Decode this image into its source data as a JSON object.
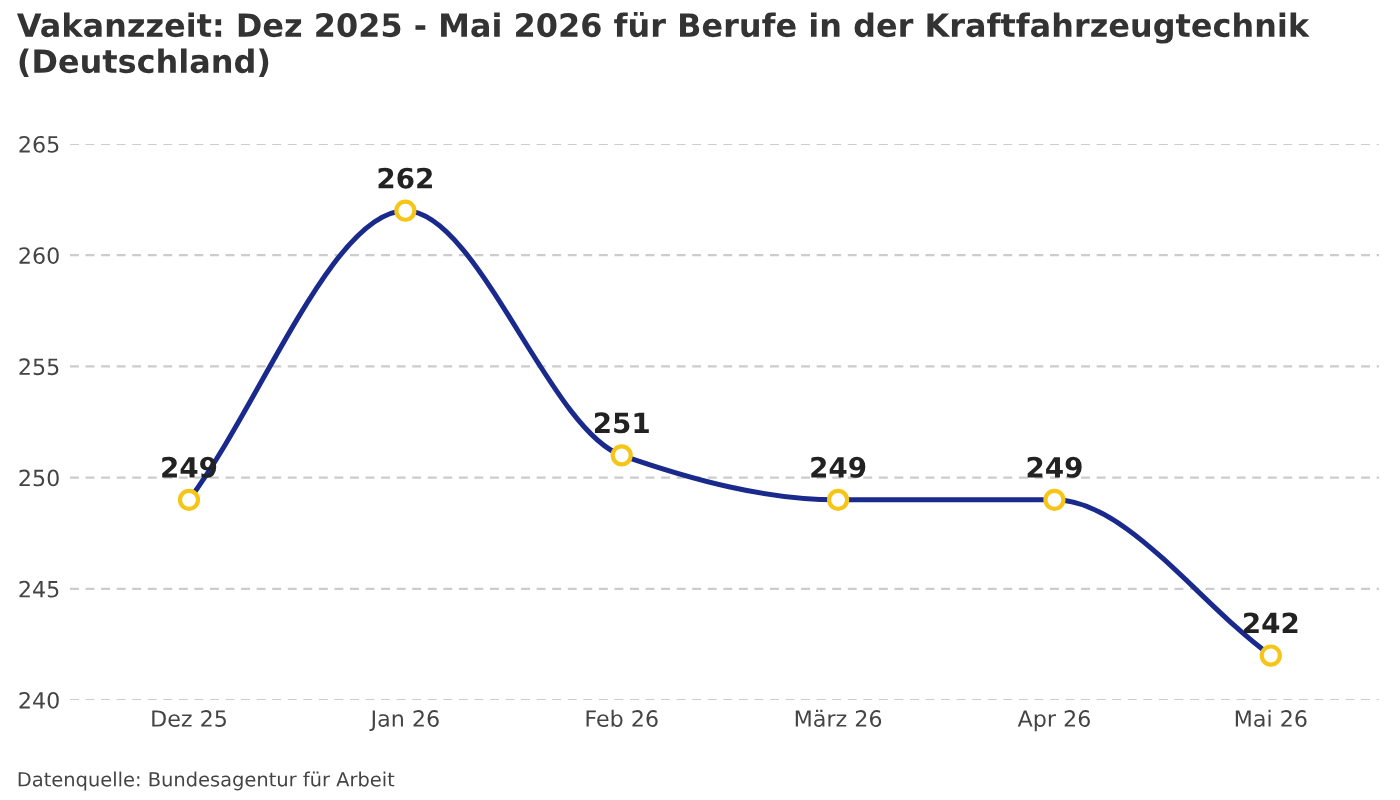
{
  "chart_data": {
    "type": "line",
    "title": "Vakanzzeit: Dez 2025 - Mai 2026 für Berufe in der Kraftfahrzeugtechnik (Deutschland)",
    "categories": [
      "Dez 25",
      "Jan 26",
      "Feb 26",
      "März 26",
      "Apr 26",
      "Mai 26"
    ],
    "series": [
      {
        "color": "#1a2a8c",
        "values": [
          249,
          262,
          251,
          249,
          249,
          242
        ]
      }
    ],
    "ylim": [
      240,
      265
    ],
    "yticks": [
      240,
      245,
      250,
      255,
      260,
      265
    ],
    "grid": "y",
    "marker": "circle",
    "data_labels": true,
    "legend": false,
    "annotations": [
      "Datenquelle: Bundesagentur für Arbeit"
    ]
  }
}
